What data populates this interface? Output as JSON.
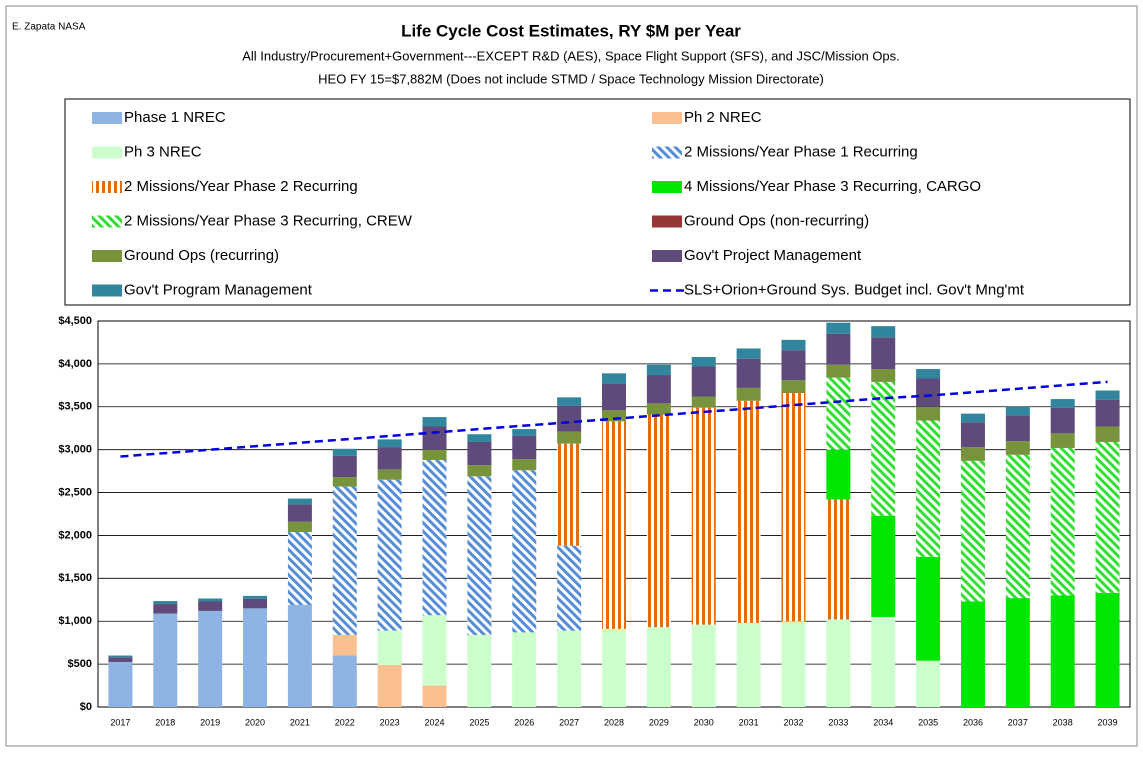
{
  "chart_data": {
    "type": "stacked_bar",
    "credit": "E. Zapata NASA",
    "title": "Life Cycle Cost Estimates, RY $M per Year",
    "subtitle": "All Industry/Procurement+Government---EXCEPT R&D (AES), Space Flight Support (SFS), and JSC/Mission Ops.",
    "subtitle2": "HEO FY 15=$7,882M (Does not include STMD / Space Technology Mission Directorate)",
    "categories": [
      "2017",
      "2018",
      "2019",
      "2020",
      "2021",
      "2022",
      "2023",
      "2024",
      "2025",
      "2026",
      "2027",
      "2028",
      "2029",
      "2030",
      "2031",
      "2032",
      "2033",
      "2034",
      "2035",
      "2036",
      "2037",
      "2038",
      "2039"
    ],
    "ylim": [
      0,
      4500
    ],
    "yticks": [
      {
        "value": 0,
        "label": "$0"
      },
      {
        "value": 500,
        "label": "$500"
      },
      {
        "value": 1000,
        "label": "$1,000"
      },
      {
        "value": 1500,
        "label": "$1,500"
      },
      {
        "value": 2000,
        "label": "$2,000"
      },
      {
        "value": 2500,
        "label": "$2,500"
      },
      {
        "value": 3000,
        "label": "$3,000"
      },
      {
        "value": 3500,
        "label": "$3,500"
      },
      {
        "value": 4000,
        "label": "$4,000"
      },
      {
        "value": 4500,
        "label": "$4,500"
      }
    ],
    "grid": true,
    "series": [
      {
        "name": "Phase 1 NREC",
        "color": "#8eb4e3",
        "values": [
          525,
          1090,
          1120,
          1150,
          1190,
          600,
          0,
          0,
          0,
          0,
          0,
          0,
          0,
          0,
          0,
          0,
          0,
          0,
          0,
          0,
          0,
          0,
          0
        ]
      },
      {
        "name": "Ph 2 NREC",
        "color": "#fac090",
        "values": [
          0,
          0,
          0,
          0,
          0,
          240,
          490,
          250,
          0,
          0,
          0,
          0,
          0,
          0,
          0,
          0,
          0,
          0,
          0,
          0,
          0,
          0,
          0
        ]
      },
      {
        "name": "Ph 3 NREC",
        "color": "#ccffcc",
        "values": [
          0,
          0,
          0,
          0,
          0,
          0,
          400,
          820,
          840,
          870,
          890,
          910,
          930,
          960,
          980,
          1000,
          1020,
          1050,
          540,
          0,
          0,
          0,
          0
        ]
      },
      {
        "name": "2 Missions/Year Phase 1 Recurring",
        "color": "#558ed5",
        "hatch": "diagonal",
        "values": [
          0,
          0,
          0,
          0,
          850,
          1730,
          1760,
          1810,
          1850,
          1890,
          990,
          0,
          0,
          0,
          0,
          0,
          0,
          0,
          0,
          0,
          0,
          0,
          0
        ]
      },
      {
        "name": "2 Missions/Year Phase 2 Recurring",
        "color": "#e46c0a",
        "hatch": "vertical",
        "values": [
          0,
          0,
          0,
          0,
          0,
          0,
          0,
          0,
          0,
          0,
          1190,
          2420,
          2480,
          2530,
          2590,
          2660,
          1400,
          0,
          0,
          0,
          0,
          0,
          0
        ]
      },
      {
        "name": "4 Missions/Year Phase 3 Recurring, CARGO",
        "color": "#00e600",
        "values": [
          0,
          0,
          0,
          0,
          0,
          0,
          0,
          0,
          0,
          0,
          0,
          0,
          0,
          0,
          0,
          0,
          580,
          1180,
          1210,
          1230,
          1270,
          1300,
          1330
        ]
      },
      {
        "name": "2 Missions/Year Phase 3 Recurring, CREW",
        "color": "#33dd33",
        "hatch": "diagonal",
        "values": [
          0,
          0,
          0,
          0,
          0,
          0,
          0,
          0,
          0,
          0,
          0,
          0,
          0,
          0,
          0,
          0,
          840,
          1560,
          1590,
          1640,
          1670,
          1720,
          1760
        ]
      },
      {
        "name": "Ground Ops (non-recurring)",
        "color": "#953735",
        "values": [
          0,
          0,
          0,
          0,
          0,
          0,
          0,
          0,
          0,
          0,
          0,
          0,
          0,
          0,
          0,
          0,
          0,
          0,
          0,
          0,
          0,
          0,
          0
        ]
      },
      {
        "name": "Ground Ops (recurring)",
        "color": "#77933c",
        "values": [
          0,
          0,
          0,
          0,
          120,
          110,
          120,
          120,
          130,
          130,
          140,
          130,
          130,
          130,
          150,
          150,
          150,
          150,
          160,
          160,
          160,
          170,
          180
        ]
      },
      {
        "name": "Gov't Project Management",
        "color": "#604a7b",
        "values": [
          55,
          110,
          110,
          110,
          200,
          250,
          260,
          270,
          270,
          270,
          300,
          310,
          330,
          350,
          340,
          350,
          360,
          370,
          330,
          290,
          300,
          300,
          310
        ]
      },
      {
        "name": "Gov't Program Management",
        "color": "#31859c",
        "values": [
          20,
          35,
          35,
          35,
          70,
          80,
          90,
          110,
          90,
          80,
          100,
          120,
          120,
          110,
          120,
          120,
          130,
          130,
          110,
          100,
          100,
          100,
          110
        ]
      }
    ],
    "line_series": {
      "name": "SLS+Orion+Ground Sys. Budget incl. Gov't Mng'mt",
      "color": "#0000dd",
      "style": "dashed",
      "values": [
        2920,
        2960,
        3000,
        3040,
        3080,
        3120,
        3160,
        3200,
        3240,
        3280,
        3320,
        3360,
        3400,
        3440,
        3480,
        3520,
        3560,
        3600,
        3630,
        3670,
        3710,
        3750,
        3790
      ]
    }
  }
}
